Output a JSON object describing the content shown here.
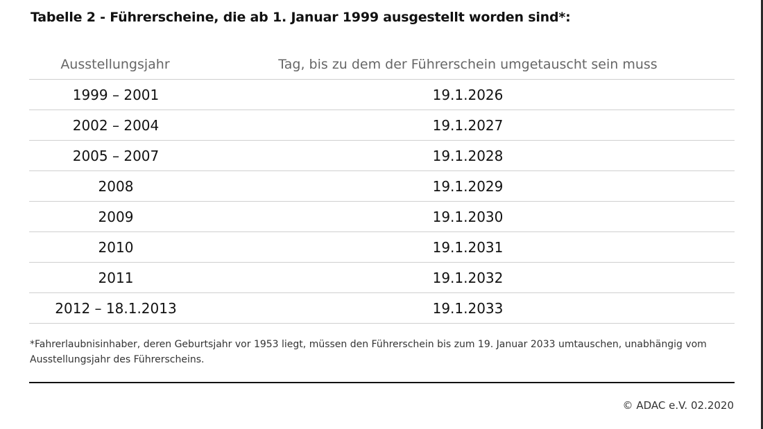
{
  "title": "Tabelle 2 - Führerscheine, die ab 1. Januar 1999 ausgestellt worden sind*:",
  "table": {
    "headers": [
      "Ausstellungsjahr",
      "Tag, bis zu dem der Führerschein umgetauscht sein muss"
    ],
    "rows": [
      [
        "1999 – 2001",
        "19.1.2026"
      ],
      [
        "2002 – 2004",
        "19.1.2027"
      ],
      [
        "2005 – 2007",
        "19.1.2028"
      ],
      [
        "2008",
        "19.1.2029"
      ],
      [
        "2009",
        "19.1.2030"
      ],
      [
        "2010",
        "19.1.2031"
      ],
      [
        "2011",
        "19.1.2032"
      ],
      [
        "2012 – 18.1.2013",
        "19.1.2033"
      ]
    ]
  },
  "footnote": "*Fahrerlaubnisinhaber, deren Geburtsjahr vor 1953 liegt, müssen den Führerschein bis zum 19. Januar 2033 umtauschen, unabhängig vom Ausstellungsjahr des Führerscheins.",
  "copyright": "© ADAC e.V. 02.2020",
  "colors": {
    "text": "#111111",
    "header_text": "#666666",
    "divider": "#cfcfcf"
  }
}
